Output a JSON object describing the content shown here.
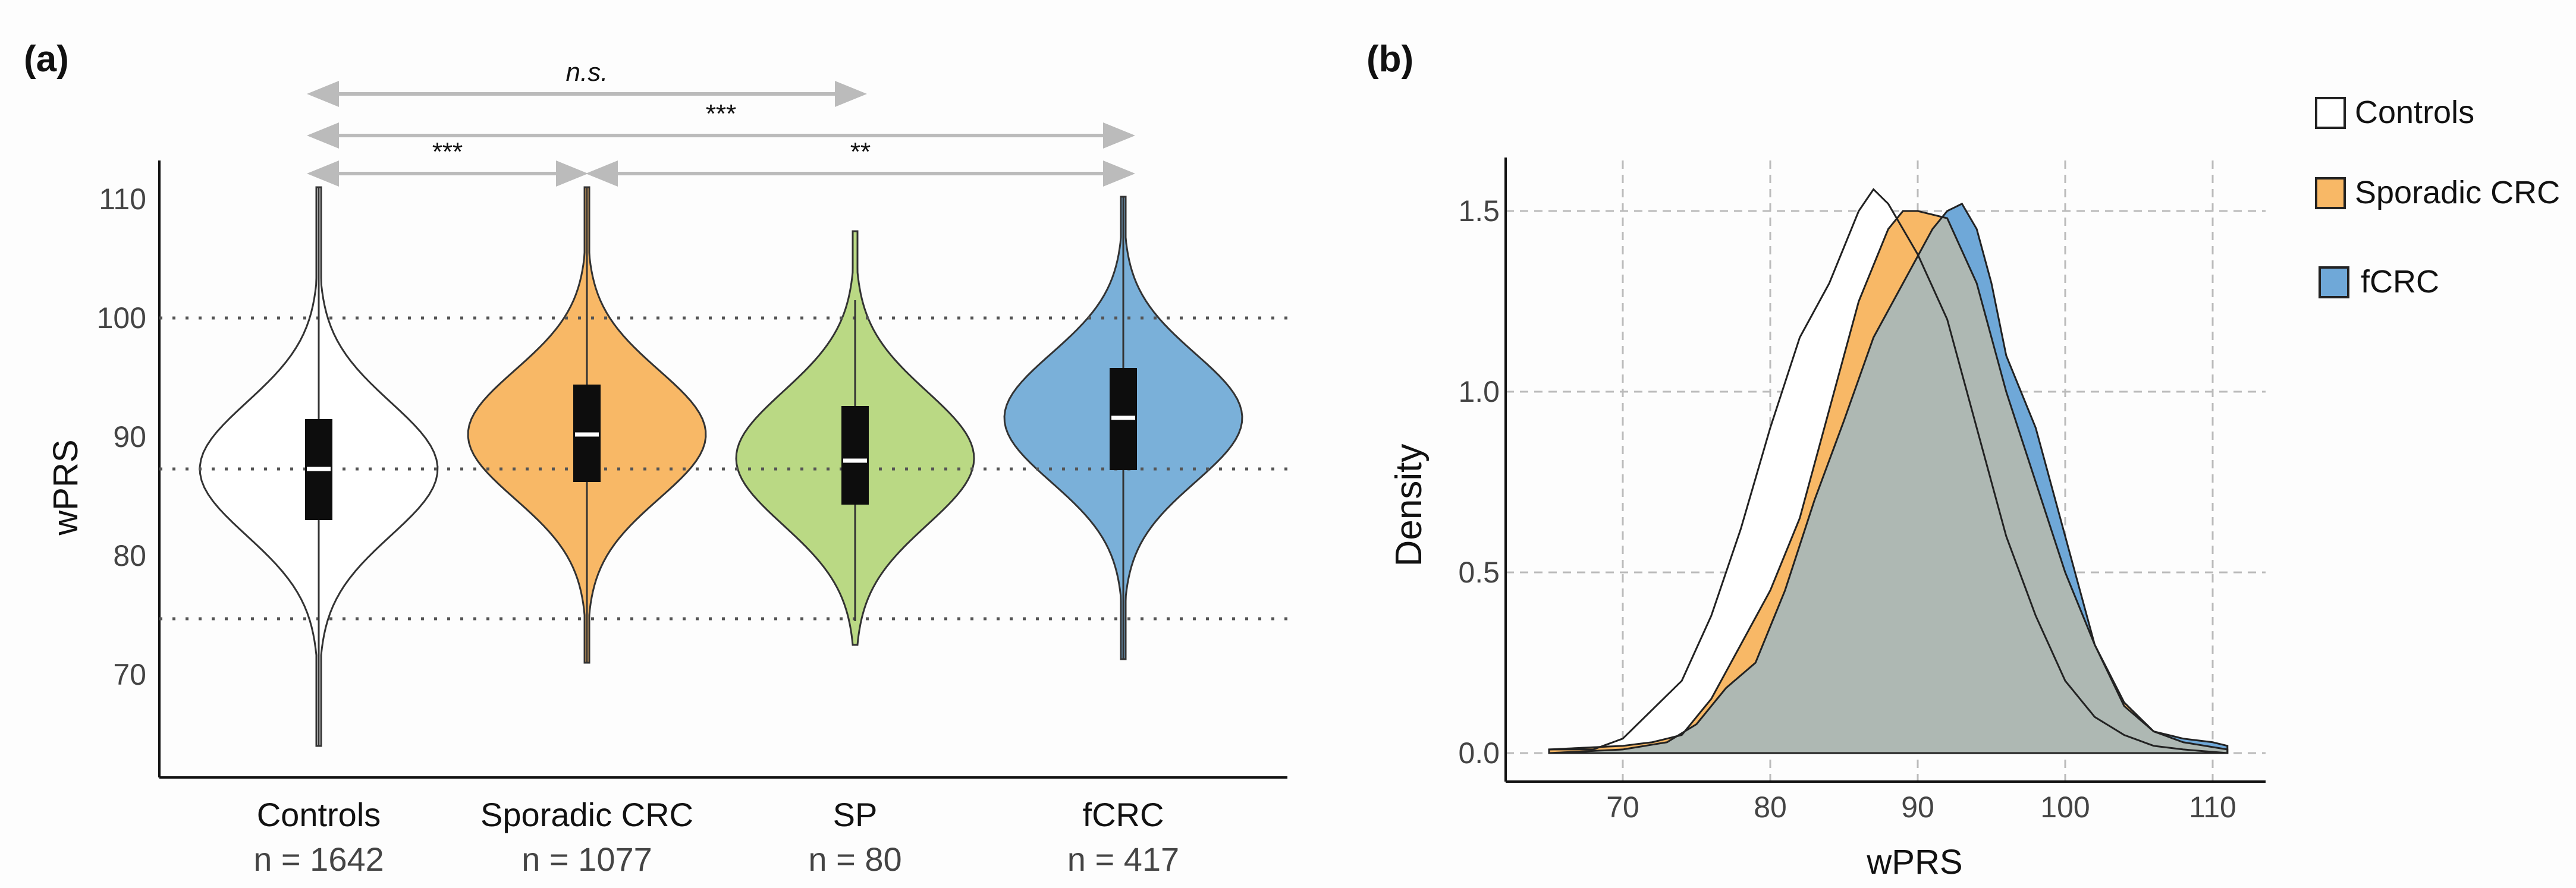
{
  "chart_data": [
    {
      "panel_label": "(a)",
      "type": "violin",
      "ylabel": "wPRS",
      "ylim": [
        60,
        112
      ],
      "yticks": [
        70,
        80,
        90,
        100,
        110
      ],
      "reference_lines": [
        100,
        87.3,
        74.7
      ],
      "groups": [
        {
          "name": "Controls",
          "n_label": "n = 1642",
          "color": "#ffffff",
          "mean": 87.3,
          "sd": 5.6,
          "min": 64,
          "max": 111,
          "q1": 83.0,
          "median": 87.3,
          "q3": 91.5,
          "whisker_low": 64,
          "whisker_high": 111
        },
        {
          "name": "Sporadic CRC",
          "n_label": "n = 1077",
          "color": "#f8b866",
          "mean": 90.2,
          "sd": 5.4,
          "min": 71,
          "max": 111,
          "q1": 86.2,
          "median": 90.2,
          "q3": 94.4,
          "whisker_low": 71,
          "whisker_high": 111
        },
        {
          "name": "SP",
          "n_label": "n = 80",
          "color": "#bad984",
          "mean": 88.2,
          "sd": 5.6,
          "min": 72.5,
          "max": 107.3,
          "q1": 84.3,
          "median": 88.0,
          "q3": 92.6,
          "whisker_low": 74.5,
          "whisker_high": 101.5
        },
        {
          "name": "fCRC",
          "n_label": "n = 417",
          "color": "#7ab0d9",
          "mean": 91.6,
          "sd": 5.4,
          "min": 71.3,
          "max": 110.2,
          "q1": 87.2,
          "median": 91.6,
          "q3": 95.8,
          "whisker_low": 71.3,
          "whisker_high": 110.2
        }
      ],
      "comparisons": [
        {
          "from": "Controls",
          "to": "SP",
          "label": "n.s."
        },
        {
          "from": "Controls",
          "to": "fCRC",
          "label": "***"
        },
        {
          "from": "Controls",
          "to": "Sporadic CRC",
          "label": "***"
        },
        {
          "from": "Sporadic CRC",
          "to": "fCRC",
          "label": "**"
        }
      ]
    },
    {
      "panel_label": "(b)",
      "type": "area",
      "xlabel": "wPRS",
      "ylabel": "Density",
      "xlim": [
        63,
        114
      ],
      "ylim": [
        -0.08,
        1.65
      ],
      "xticks": [
        70,
        80,
        90,
        100,
        110
      ],
      "yticks": [
        "0.0",
        "0.5",
        "1.0",
        "1.5"
      ],
      "grid": true,
      "legend_position": "top-right",
      "series": [
        {
          "name": "Controls",
          "color": "#ffffff",
          "points": [
            [
              65,
              0.01
            ],
            [
              68,
              0.01
            ],
            [
              70,
              0.04
            ],
            [
              72,
              0.12
            ],
            [
              74,
              0.2
            ],
            [
              76,
              0.38
            ],
            [
              78,
              0.62
            ],
            [
              80,
              0.9
            ],
            [
              82,
              1.15
            ],
            [
              84,
              1.3
            ],
            [
              86,
              1.5
            ],
            [
              87,
              1.56
            ],
            [
              88,
              1.52
            ],
            [
              89,
              1.45
            ],
            [
              90,
              1.38
            ],
            [
              92,
              1.2
            ],
            [
              94,
              0.9
            ],
            [
              96,
              0.6
            ],
            [
              98,
              0.38
            ],
            [
              100,
              0.2
            ],
            [
              102,
              0.1
            ],
            [
              104,
              0.05
            ],
            [
              106,
              0.02
            ],
            [
              108,
              0.01
            ],
            [
              111,
              0.0
            ]
          ]
        },
        {
          "name": "Sporadic CRC",
          "color": "#f8b866",
          "points": [
            [
              65,
              0.01
            ],
            [
              70,
              0.02
            ],
            [
              72,
              0.03
            ],
            [
              74,
              0.05
            ],
            [
              76,
              0.15
            ],
            [
              78,
              0.3
            ],
            [
              80,
              0.45
            ],
            [
              82,
              0.65
            ],
            [
              84,
              0.95
            ],
            [
              86,
              1.25
            ],
            [
              88,
              1.45
            ],
            [
              89,
              1.5
            ],
            [
              90,
              1.5
            ],
            [
              91,
              1.49
            ],
            [
              92,
              1.48
            ],
            [
              94,
              1.3
            ],
            [
              96,
              1.0
            ],
            [
              98,
              0.75
            ],
            [
              100,
              0.5
            ],
            [
              102,
              0.3
            ],
            [
              104,
              0.14
            ],
            [
              106,
              0.06
            ],
            [
              108,
              0.03
            ],
            [
              111,
              0.01
            ]
          ]
        },
        {
          "name": "fCRC",
          "color": "#6fa8d8",
          "points": [
            [
              65,
              0.0
            ],
            [
              70,
              0.01
            ],
            [
              73,
              0.03
            ],
            [
              75,
              0.08
            ],
            [
              77,
              0.18
            ],
            [
              79,
              0.25
            ],
            [
              81,
              0.45
            ],
            [
              83,
              0.7
            ],
            [
              85,
              0.92
            ],
            [
              87,
              1.15
            ],
            [
              89,
              1.3
            ],
            [
              91,
              1.45
            ],
            [
              92,
              1.5
            ],
            [
              93,
              1.52
            ],
            [
              94,
              1.45
            ],
            [
              95,
              1.3
            ],
            [
              96,
              1.1
            ],
            [
              98,
              0.9
            ],
            [
              100,
              0.6
            ],
            [
              102,
              0.3
            ],
            [
              104,
              0.13
            ],
            [
              106,
              0.06
            ],
            [
              108,
              0.04
            ],
            [
              110,
              0.03
            ],
            [
              111,
              0.02
            ]
          ]
        }
      ],
      "overlap_color": "#aeb8b3"
    }
  ]
}
